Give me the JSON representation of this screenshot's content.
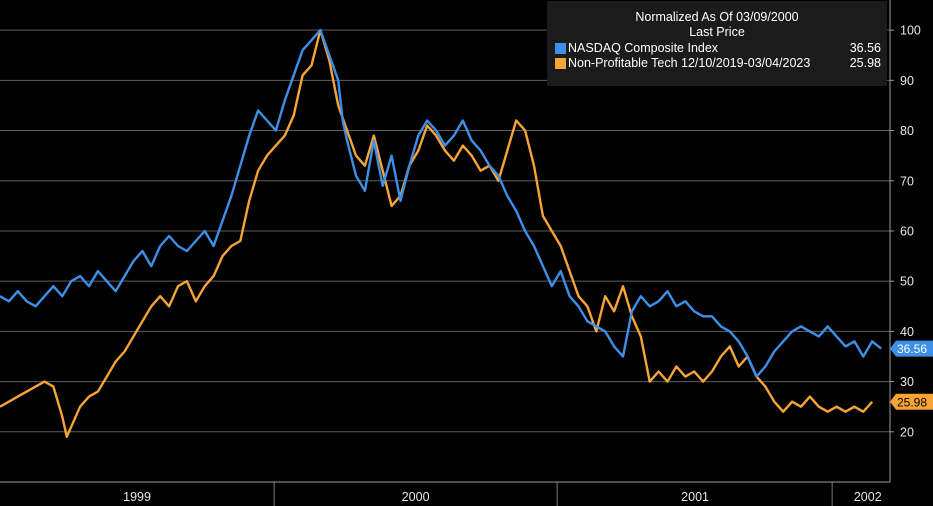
{
  "legend": {
    "title": "Normalized As Of 03/09/2000",
    "subtitle": "Last Price"
  },
  "chart_data": {
    "type": "line",
    "title": "Normalized As Of 03/09/2000",
    "subtitle": "Last Price",
    "ylim": [
      10,
      106
    ],
    "yticks": [
      20,
      30,
      40,
      50,
      60,
      70,
      80,
      90,
      100
    ],
    "gridlines": [
      20,
      30,
      40,
      50,
      60,
      70,
      80,
      90,
      100
    ],
    "xlim": [
      0,
      100
    ],
    "year_separators": [
      30.8,
      62.6,
      93.5
    ],
    "xticks": [
      {
        "label": "1999",
        "pos": 15.4
      },
      {
        "label": "2000",
        "pos": 46.7
      },
      {
        "label": "2001",
        "pos": 78.1
      },
      {
        "label": "2002",
        "pos": 97.5
      }
    ],
    "series": [
      {
        "name": "NASDAQ Composite Index",
        "last": "36.56",
        "color": "#3d8fe8",
        "tag_text": "#ffffff",
        "points": [
          [
            0,
            47
          ],
          [
            1,
            46
          ],
          [
            2,
            48
          ],
          [
            3,
            46
          ],
          [
            4,
            45
          ],
          [
            5,
            47
          ],
          [
            6,
            49
          ],
          [
            7,
            47
          ],
          [
            8,
            50
          ],
          [
            9,
            51
          ],
          [
            10,
            49
          ],
          [
            11,
            52
          ],
          [
            12,
            50
          ],
          [
            13,
            48
          ],
          [
            14,
            51
          ],
          [
            15,
            54
          ],
          [
            16,
            56
          ],
          [
            17,
            53
          ],
          [
            18,
            57
          ],
          [
            19,
            59
          ],
          [
            20,
            57
          ],
          [
            21,
            56
          ],
          [
            22,
            58
          ],
          [
            23,
            60
          ],
          [
            24,
            57
          ],
          [
            25,
            62
          ],
          [
            26,
            67
          ],
          [
            27,
            73
          ],
          [
            28,
            79
          ],
          [
            29,
            84
          ],
          [
            30,
            82
          ],
          [
            31,
            80
          ],
          [
            32,
            86
          ],
          [
            33,
            91
          ],
          [
            34,
            96
          ],
          [
            35,
            98
          ],
          [
            36,
            100
          ],
          [
            37,
            95
          ],
          [
            38,
            90
          ],
          [
            38.5,
            82
          ],
          [
            39,
            78
          ],
          [
            40,
            71
          ],
          [
            41,
            68
          ],
          [
            42,
            78
          ],
          [
            43,
            69
          ],
          [
            44,
            75
          ],
          [
            45,
            66
          ],
          [
            46,
            73
          ],
          [
            47,
            79
          ],
          [
            48,
            82
          ],
          [
            49,
            80
          ],
          [
            50,
            77
          ],
          [
            51,
            79
          ],
          [
            52,
            82
          ],
          [
            53,
            78
          ],
          [
            54,
            76
          ],
          [
            55,
            73
          ],
          [
            56,
            71
          ],
          [
            57,
            67
          ],
          [
            58,
            64
          ],
          [
            59,
            60
          ],
          [
            60,
            57
          ],
          [
            61,
            53
          ],
          [
            62,
            49
          ],
          [
            63,
            52
          ],
          [
            64,
            47
          ],
          [
            65,
            45
          ],
          [
            66,
            42
          ],
          [
            67,
            41
          ],
          [
            68,
            40
          ],
          [
            69,
            37
          ],
          [
            70,
            35
          ],
          [
            71,
            44
          ],
          [
            72,
            47
          ],
          [
            73,
            45
          ],
          [
            74,
            46
          ],
          [
            75,
            48
          ],
          [
            76,
            45
          ],
          [
            77,
            46
          ],
          [
            78,
            44
          ],
          [
            79,
            43
          ],
          [
            80,
            43
          ],
          [
            81,
            41
          ],
          [
            82,
            40
          ],
          [
            83,
            38
          ],
          [
            84,
            35
          ],
          [
            85,
            31
          ],
          [
            86,
            33
          ],
          [
            87,
            36
          ],
          [
            88,
            38
          ],
          [
            89,
            40
          ],
          [
            90,
            41
          ],
          [
            91,
            40
          ],
          [
            92,
            39
          ],
          [
            93,
            41
          ],
          [
            94,
            39
          ],
          [
            95,
            37
          ],
          [
            96,
            38
          ],
          [
            97,
            35
          ],
          [
            98,
            38
          ],
          [
            99,
            36.56
          ]
        ]
      },
      {
        "name": "Non-Profitable Tech 12/10/2019-03/04/2023",
        "last": "25.98",
        "color": "#f7a436",
        "tag_text": "#000000",
        "points": [
          [
            0,
            25
          ],
          [
            1,
            26
          ],
          [
            2,
            27
          ],
          [
            3,
            28
          ],
          [
            4,
            29
          ],
          [
            5,
            30
          ],
          [
            6,
            29
          ],
          [
            7,
            23
          ],
          [
            7.5,
            19
          ],
          [
            8,
            21
          ],
          [
            9,
            25
          ],
          [
            10,
            27
          ],
          [
            11,
            28
          ],
          [
            12,
            31
          ],
          [
            13,
            34
          ],
          [
            14,
            36
          ],
          [
            15,
            39
          ],
          [
            16,
            42
          ],
          [
            17,
            45
          ],
          [
            18,
            47
          ],
          [
            19,
            45
          ],
          [
            20,
            49
          ],
          [
            21,
            50
          ],
          [
            22,
            46
          ],
          [
            23,
            49
          ],
          [
            24,
            51
          ],
          [
            25,
            55
          ],
          [
            26,
            57
          ],
          [
            27,
            58
          ],
          [
            28,
            66
          ],
          [
            29,
            72
          ],
          [
            30,
            75
          ],
          [
            31,
            77
          ],
          [
            32,
            79
          ],
          [
            33,
            83
          ],
          [
            34,
            91
          ],
          [
            35,
            93
          ],
          [
            36,
            100
          ],
          [
            37,
            94
          ],
          [
            38,
            85
          ],
          [
            39,
            80
          ],
          [
            40,
            75
          ],
          [
            41,
            73
          ],
          [
            42,
            79
          ],
          [
            43,
            72
          ],
          [
            44,
            65
          ],
          [
            45,
            67
          ],
          [
            46,
            73
          ],
          [
            47,
            76
          ],
          [
            48,
            81
          ],
          [
            49,
            79
          ],
          [
            50,
            76
          ],
          [
            51,
            74
          ],
          [
            52,
            77
          ],
          [
            53,
            75
          ],
          [
            54,
            72
          ],
          [
            55,
            73
          ],
          [
            56,
            70
          ],
          [
            57,
            76
          ],
          [
            58,
            82
          ],
          [
            59,
            80
          ],
          [
            60,
            73
          ],
          [
            61,
            63
          ],
          [
            62,
            60
          ],
          [
            63,
            57
          ],
          [
            64,
            52
          ],
          [
            65,
            47
          ],
          [
            66,
            45
          ],
          [
            67,
            40
          ],
          [
            68,
            47
          ],
          [
            69,
            44
          ],
          [
            70,
            49
          ],
          [
            71,
            43
          ],
          [
            72,
            39
          ],
          [
            73,
            30
          ],
          [
            74,
            32
          ],
          [
            75,
            30
          ],
          [
            76,
            33
          ],
          [
            77,
            31
          ],
          [
            78,
            32
          ],
          [
            79,
            30
          ],
          [
            80,
            32
          ],
          [
            81,
            35
          ],
          [
            82,
            37
          ],
          [
            83,
            33
          ],
          [
            84,
            35
          ],
          [
            85,
            31
          ],
          [
            86,
            29
          ],
          [
            87,
            26
          ],
          [
            88,
            24
          ],
          [
            89,
            26
          ],
          [
            90,
            25
          ],
          [
            91,
            27
          ],
          [
            92,
            25
          ],
          [
            93,
            24
          ],
          [
            94,
            25
          ],
          [
            95,
            24
          ],
          [
            96,
            25
          ],
          [
            97,
            24
          ],
          [
            98,
            25.98
          ]
        ]
      }
    ]
  }
}
